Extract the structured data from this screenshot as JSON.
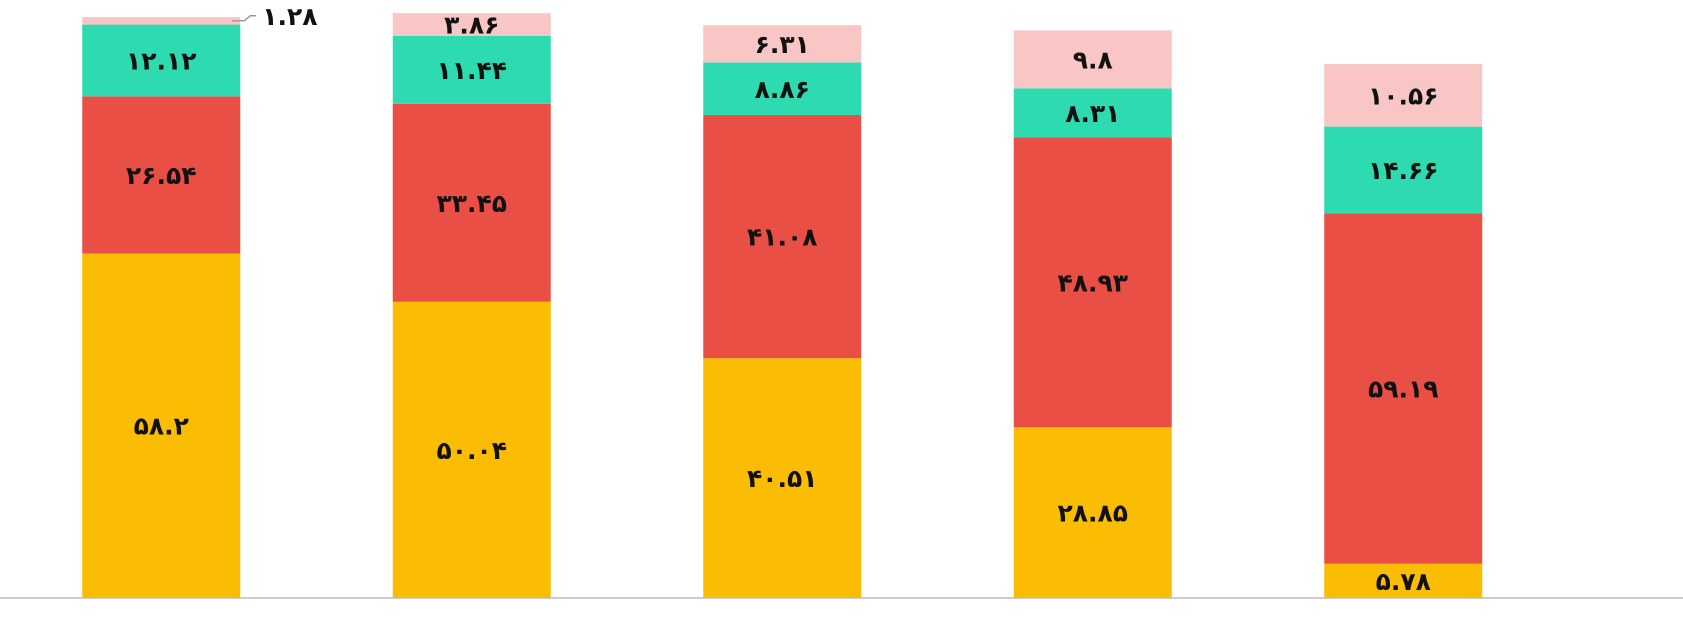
{
  "chart_data": {
    "type": "stacked_bar",
    "categories": [
      null,
      null,
      null,
      null,
      null
    ],
    "ylim": [
      0,
      100
    ],
    "series": [
      {
        "color": "#fbbc04",
        "values": [
          58.2,
          50.04,
          40.51,
          28.85,
          5.78
        ],
        "value_labels": [
          "۵۸.۲",
          "۵۰.۰۴",
          "۴۰.۵۱",
          "۲۸.۸۵",
          "۵.۷۸"
        ]
      },
      {
        "color": "#ea4f46",
        "values": [
          26.54,
          33.45,
          41.08,
          48.93,
          59.19
        ],
        "value_labels": [
          "۲۶.۵۴",
          "۳۳.۴۵",
          "۴۱.۰۸",
          "۴۸.۹۳",
          "۵۹.۱۹"
        ]
      },
      {
        "color": "#2edbb0",
        "values": [
          12.12,
          11.44,
          8.86,
          8.31,
          14.66
        ],
        "value_labels": [
          "۱۲.۱۲",
          "۱۱.۴۴",
          "۸.۸۶",
          "۸.۳۱",
          "۱۴.۶۶"
        ]
      },
      {
        "color": "#f8c6c4",
        "values": [
          1.28,
          3.86,
          6.31,
          9.8,
          10.56
        ],
        "value_labels": [
          "۱.۲۸",
          "۳.۸۶",
          "۶.۳۱",
          "۹.۸",
          "۱۰.۵۶"
        ]
      }
    ]
  }
}
